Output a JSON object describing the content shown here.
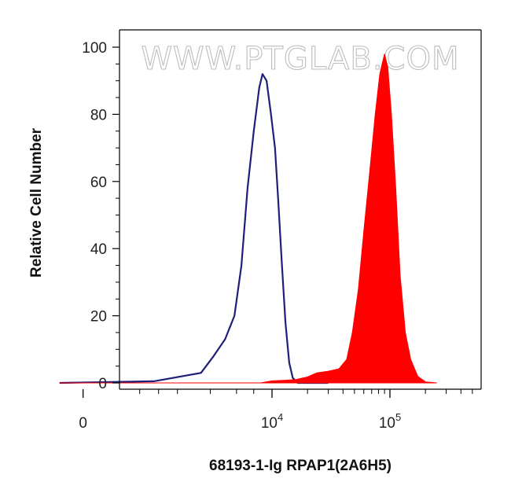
{
  "chart_data": {
    "type": "area",
    "title": "",
    "xlabel": "68193-1-Ig RPAP1(2A6H5)",
    "ylabel": "Relative Cell Number",
    "watermark": "WWW.PTGLAB.COM",
    "x_scale": "biexponential",
    "ylim": [
      0,
      100
    ],
    "y_ticks": [
      "0",
      "20",
      "40",
      "60",
      "80",
      "100"
    ],
    "x_ticks": [
      {
        "base": "0",
        "exp": ""
      },
      {
        "base": "10",
        "exp": "4"
      },
      {
        "base": "10",
        "exp": "5"
      }
    ],
    "grid": false,
    "legend": "none",
    "series": [
      {
        "style": "outline",
        "color": "#1f1f7a",
        "points": [
          [
            -500,
            0
          ],
          [
            1500,
            0.5
          ],
          [
            2500,
            3
          ],
          [
            3200,
            8
          ],
          [
            4000,
            13
          ],
          [
            4800,
            20
          ],
          [
            5500,
            35
          ],
          [
            6200,
            58
          ],
          [
            7000,
            75
          ],
          [
            7800,
            88
          ],
          [
            8300,
            92
          ],
          [
            9000,
            90
          ],
          [
            9800,
            80
          ],
          [
            10600,
            70
          ],
          [
            11300,
            54
          ],
          [
            12100,
            36
          ],
          [
            13000,
            18
          ],
          [
            14000,
            6
          ],
          [
            15000,
            1.5
          ],
          [
            16500,
            0
          ],
          [
            30000,
            0
          ]
        ]
      },
      {
        "style": "filled",
        "color": "#ff0000",
        "points": [
          [
            -500,
            0
          ],
          [
            8000,
            0
          ],
          [
            10000,
            0.6
          ],
          [
            13000,
            0.8
          ],
          [
            16000,
            1
          ],
          [
            20000,
            1.8
          ],
          [
            24000,
            3
          ],
          [
            30000,
            3.5
          ],
          [
            37000,
            4.2
          ],
          [
            43000,
            7
          ],
          [
            48000,
            15
          ],
          [
            54000,
            28
          ],
          [
            60000,
            45
          ],
          [
            67000,
            62
          ],
          [
            75000,
            80
          ],
          [
            82000,
            92
          ],
          [
            90000,
            98
          ],
          [
            96000,
            94
          ],
          [
            103000,
            80
          ],
          [
            112000,
            58
          ],
          [
            122000,
            32
          ],
          [
            135000,
            15
          ],
          [
            150000,
            7
          ],
          [
            172000,
            2
          ],
          [
            200000,
            0.3
          ],
          [
            250000,
            0
          ]
        ]
      }
    ]
  }
}
